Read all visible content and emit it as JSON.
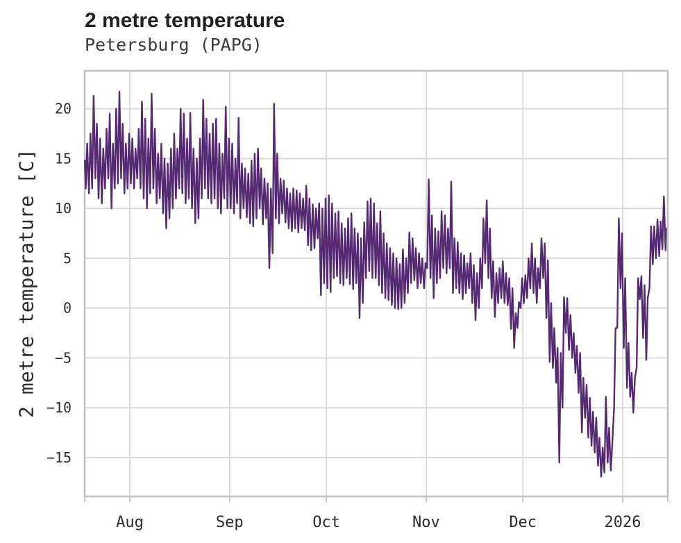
{
  "header": {
    "title": "2 metre temperature",
    "subtitle": "Petersburg (PAPG)"
  },
  "chart_data": {
    "type": "line",
    "title": "2 metre temperature",
    "subtitle": "Petersburg (PAPG)",
    "xlabel": "",
    "ylabel": "2 metre temperature [C]",
    "legend": "none",
    "grid": "on",
    "xlim_days": [
      0,
      181
    ],
    "ylim": [
      -18.9,
      23.8
    ],
    "x_unit": "days (x axis spans mid-July through the 2026 label; month ticks below)",
    "x_ticks": [
      {
        "label": "Aug",
        "day": 14
      },
      {
        "label": "Sep",
        "day": 45
      },
      {
        "label": "Oct",
        "day": 75
      },
      {
        "label": "Nov",
        "day": 106
      },
      {
        "label": "Dec",
        "day": 136
      },
      {
        "label": "2026",
        "day": 167
      }
    ],
    "edge_tick_days": [
      0,
      181
    ],
    "y_ticks": [
      {
        "label": "20",
        "value": 20
      },
      {
        "label": "15",
        "value": 15
      },
      {
        "label": "10",
        "value": 10
      },
      {
        "label": "5",
        "value": 5
      },
      {
        "label": "0",
        "value": 0
      },
      {
        "label": "−5",
        "value": -5
      },
      {
        "label": "−10",
        "value": -10
      },
      {
        "label": "−15",
        "value": -15
      }
    ],
    "colors": {
      "line": "#552a72",
      "grid": "#d6d6d6",
      "axis_border": "#c4c4c4",
      "tick_mark": "#c4c4c4",
      "tick_text": "#2b2b2b",
      "title_text": "#212121",
      "subtitle_text": "#3a3a3a"
    },
    "series": [
      {
        "name": "2 metre temperature",
        "start_value": 14.8,
        "daily_min": [
          12,
          11.5,
          12,
          13,
          11,
          10.5,
          12,
          13,
          10,
          12,
          12.5,
          13,
          11.5,
          12,
          12.5,
          12,
          13,
          12,
          11,
          10,
          11.5,
          12,
          10.5,
          11,
          9.5,
          8,
          9,
          10,
          11,
          12,
          11.5,
          10.5,
          11,
          10,
          8.5,
          9,
          11,
          12,
          11,
          10.5,
          11,
          10,
          9.5,
          11,
          10,
          10,
          9.5,
          10.5,
          9,
          10,
          9.1,
          8.5,
          8.2,
          9,
          10,
          8.4,
          9,
          4,
          5.5,
          9,
          8.5,
          9.5,
          8.6,
          8,
          7.7,
          8,
          7.6,
          8,
          7.8,
          6.3,
          5.8,
          6,
          7,
          1.3,
          2.5,
          2,
          1.6,
          3,
          3.2,
          2.5,
          2.3,
          3,
          2.4,
          1.9,
          2.5,
          -1,
          0.5,
          3,
          3.7,
          3,
          3,
          2.3,
          1.5,
          1,
          0.8,
          0.3,
          0,
          -0.1,
          0,
          0.5,
          1.5,
          2.5,
          2.8,
          2,
          2.5,
          2,
          4,
          3,
          1,
          2.5,
          3,
          4,
          3.5,
          4,
          1.5,
          2,
          1.5,
          0.9,
          1.5,
          2,
          0.5,
          -1.2,
          0,
          2,
          4.5,
          3,
          1,
          -0.9,
          0.5,
          1,
          0.5,
          0.3,
          -2.1,
          -4,
          -2,
          0,
          0.5,
          1,
          2,
          1.5,
          0.5,
          2,
          3,
          -1,
          -5.4,
          -6,
          -7.5,
          -15.5,
          -10,
          -2.5,
          -4.2,
          -5,
          -6.5,
          -8.5,
          -12.5,
          -11,
          -13,
          -13.8,
          -14.5,
          -15.8,
          -16.9,
          -16.5,
          -15.5,
          -16.3,
          -10,
          -2,
          2,
          -4,
          -8,
          -8.9,
          -10.5,
          -6,
          0.9,
          -3,
          -5.2,
          2,
          4.4,
          5,
          5.2,
          5.9,
          5.8
        ],
        "daily_max": [
          16.5,
          17.5,
          21.3,
          18.5,
          17,
          16,
          18,
          19.5,
          16.5,
          20,
          21.7,
          18.5,
          16.5,
          17.5,
          17,
          16,
          18,
          20.7,
          19,
          17,
          21.5,
          18,
          15.5,
          16.5,
          15,
          14.5,
          16,
          17.5,
          16,
          20,
          19.5,
          17,
          19.6,
          16,
          15,
          17,
          20.9,
          19,
          17.5,
          18.5,
          19,
          16.5,
          15.5,
          20.2,
          17,
          16.5,
          15,
          19.1,
          14.5,
          14,
          13.5,
          14.8,
          15.5,
          16,
          14,
          13,
          12.5,
          12,
          20.5,
          15.5,
          13,
          12.8,
          12,
          11.5,
          12,
          11.8,
          11.5,
          11,
          12.3,
          11,
          10.4,
          10,
          10.5,
          10,
          11,
          11.3,
          10.5,
          9.5,
          9.7,
          8.5,
          8,
          9,
          9.5,
          8,
          7.5,
          7,
          8.6,
          10.7,
          11,
          10.5,
          8.5,
          9.7,
          7.5,
          6.5,
          6,
          5.5,
          5,
          4.4,
          5.9,
          5,
          7.6,
          7,
          6,
          5.5,
          5,
          4.5,
          12.9,
          9.3,
          8,
          7.7,
          9.7,
          9.3,
          8,
          12.7,
          7,
          6.6,
          5.5,
          5.3,
          4.5,
          5.5,
          4.3,
          3.5,
          5,
          9,
          10.8,
          8,
          4.7,
          3.5,
          4,
          4.7,
          3.5,
          3,
          2,
          -0.5,
          0.6,
          3,
          3.3,
          5,
          6.5,
          5,
          4,
          7,
          6.5,
          4.8,
          0.5,
          -2,
          -4,
          -4.5,
          1.1,
          1,
          -0.7,
          -2.5,
          -3.8,
          -4.5,
          -7,
          -7.7,
          -9,
          -10.4,
          -11,
          -13,
          -14,
          -8.9,
          -12,
          -13.5,
          -2,
          9,
          7.5,
          3,
          -3.5,
          -6.5,
          -7,
          3,
          3.2,
          2.3,
          1,
          8.2,
          8.2,
          8.9,
          8.7,
          11.2,
          8
        ]
      }
    ]
  }
}
